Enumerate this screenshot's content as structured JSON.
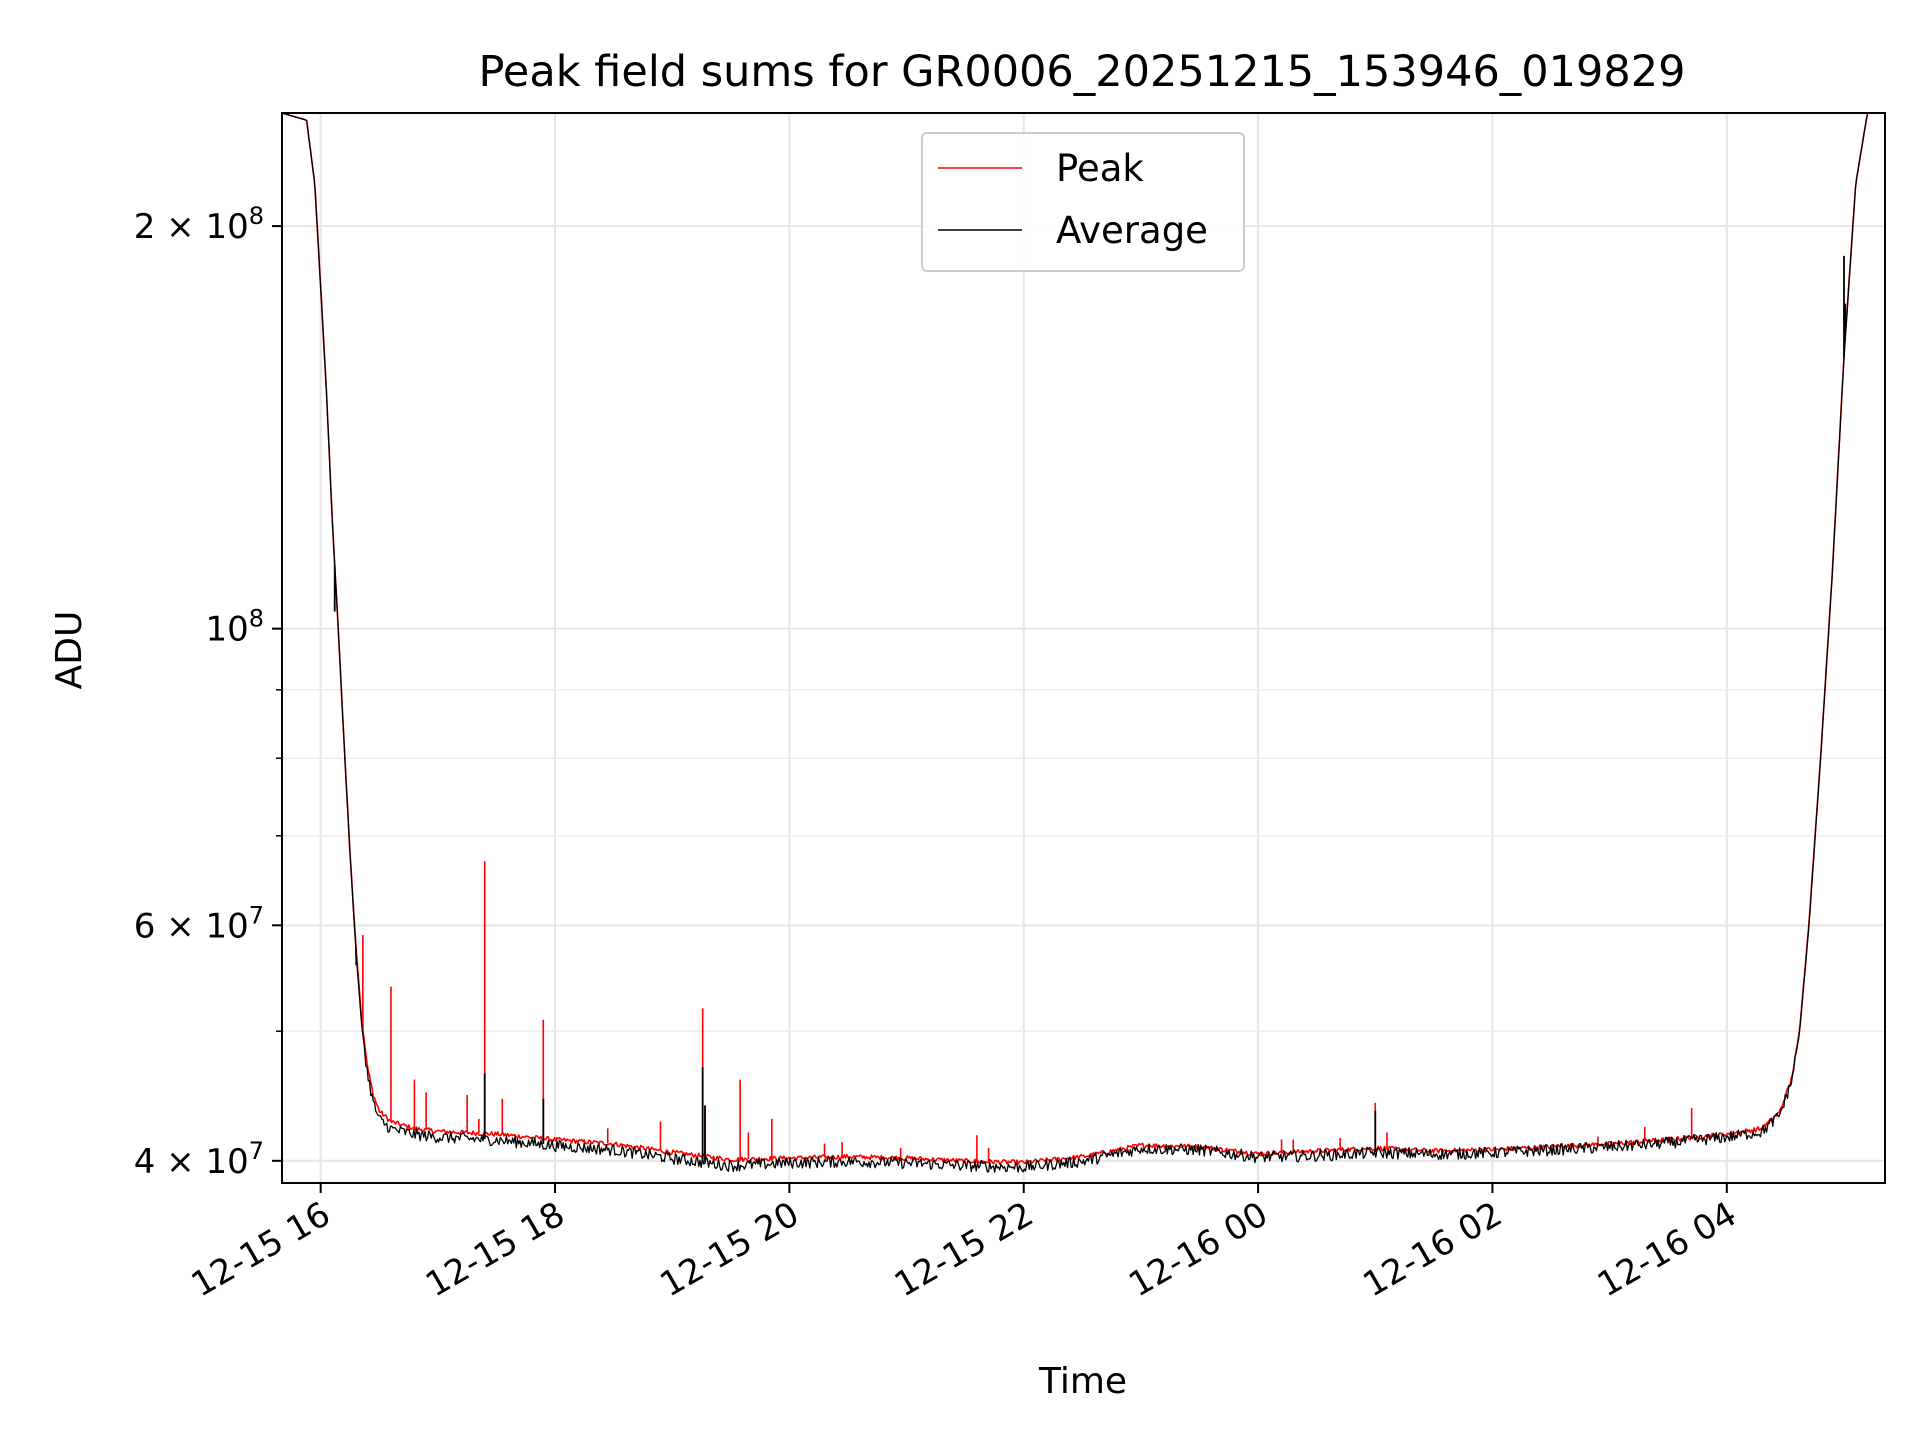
{
  "chart_data": {
    "type": "line",
    "title": "Peak field sums for GR0006_20251215_153946_019829",
    "xlabel": "Time",
    "ylabel": "ADU",
    "yscale": "log",
    "ylim": [
      38500000,
      243000000
    ],
    "xlim": [
      15.67,
      29.35
    ],
    "x_unit": "hours since 2025-12-15 00:00",
    "grid": true,
    "legend_position": "upper-center",
    "x_ticks": [
      {
        "value": 16,
        "label": "12-15 16"
      },
      {
        "value": 18,
        "label": "12-15 18"
      },
      {
        "value": 20,
        "label": "12-15 20"
      },
      {
        "value": 22,
        "label": "12-15 22"
      },
      {
        "value": 24,
        "label": "12-16 00"
      },
      {
        "value": 26,
        "label": "12-16 02"
      },
      {
        "value": 28,
        "label": "12-16 04"
      }
    ],
    "y_major_ticks": [
      {
        "value": 40000000,
        "mantissa": "4",
        "exponent": "7"
      },
      {
        "value": 60000000,
        "mantissa": "6",
        "exponent": "7"
      },
      {
        "value": 100000000,
        "mantissa": "",
        "exponent": "8"
      },
      {
        "value": 200000000,
        "mantissa": "2",
        "exponent": "8"
      }
    ],
    "y_minor_ticks": [
      50000000,
      70000000,
      80000000,
      90000000
    ],
    "series": [
      {
        "name": "Peak",
        "color": "#ff0000",
        "baseline": [
          [
            15.67,
            243000000
          ],
          [
            15.88,
            240000000
          ],
          [
            15.95,
            215000000
          ],
          [
            16.0,
            180000000
          ],
          [
            16.05,
            150000000
          ],
          [
            16.1,
            120000000
          ],
          [
            16.15,
            100000000
          ],
          [
            16.2,
            82000000
          ],
          [
            16.25,
            68000000
          ],
          [
            16.3,
            58000000
          ],
          [
            16.35,
            51000000
          ],
          [
            16.4,
            47000000
          ],
          [
            16.45,
            44800000
          ],
          [
            16.5,
            43600000
          ],
          [
            16.6,
            42800000
          ],
          [
            16.8,
            42300000
          ],
          [
            17.0,
            42100000
          ],
          [
            17.5,
            41900000
          ],
          [
            18.0,
            41500000
          ],
          [
            18.5,
            41200000
          ],
          [
            19.0,
            40600000
          ],
          [
            19.5,
            40100000
          ],
          [
            20.0,
            40200000
          ],
          [
            20.5,
            40300000
          ],
          [
            21.0,
            40200000
          ],
          [
            21.5,
            40000000
          ],
          [
            22.0,
            39900000
          ],
          [
            22.5,
            40300000
          ],
          [
            23.0,
            41100000
          ],
          [
            23.5,
            41000000
          ],
          [
            24.0,
            40500000
          ],
          [
            24.5,
            40700000
          ],
          [
            25.0,
            40900000
          ],
          [
            25.5,
            40700000
          ],
          [
            26.0,
            40800000
          ],
          [
            26.5,
            41000000
          ],
          [
            27.0,
            41200000
          ],
          [
            27.5,
            41500000
          ],
          [
            28.0,
            41900000
          ],
          [
            28.3,
            42300000
          ],
          [
            28.45,
            43500000
          ],
          [
            28.55,
            46000000
          ],
          [
            28.62,
            50000000
          ],
          [
            28.7,
            60000000
          ],
          [
            28.8,
            80000000
          ],
          [
            28.9,
            110000000
          ],
          [
            29.0,
            160000000
          ],
          [
            29.1,
            215000000
          ],
          [
            29.2,
            243000000
          ],
          [
            29.35,
            243000000
          ]
        ],
        "spikes": [
          [
            16.3,
            56000000
          ],
          [
            16.36,
            59000000
          ],
          [
            16.6,
            54000000
          ],
          [
            16.8,
            46000000
          ],
          [
            16.9,
            45000000
          ],
          [
            17.25,
            44800000
          ],
          [
            17.35,
            43000000
          ],
          [
            17.4,
            67000000
          ],
          [
            17.55,
            44500000
          ],
          [
            17.9,
            51000000
          ],
          [
            18.45,
            42300000
          ],
          [
            18.9,
            42800000
          ],
          [
            19.26,
            52000000
          ],
          [
            19.28,
            44000000
          ],
          [
            19.58,
            46000000
          ],
          [
            19.65,
            42000000
          ],
          [
            19.85,
            43000000
          ],
          [
            20.3,
            41200000
          ],
          [
            20.45,
            41300000
          ],
          [
            20.95,
            40900000
          ],
          [
            21.6,
            41800000
          ],
          [
            21.7,
            40900000
          ],
          [
            24.2,
            41500000
          ],
          [
            24.3,
            41500000
          ],
          [
            24.7,
            41600000
          ],
          [
            25.0,
            44200000
          ],
          [
            25.1,
            42000000
          ],
          [
            26.9,
            41700000
          ],
          [
            27.3,
            42400000
          ],
          [
            27.7,
            43800000
          ]
        ]
      },
      {
        "name": "Average",
        "color": "#000000",
        "baseline": [
          [
            15.67,
            243000000
          ],
          [
            15.88,
            240000000
          ],
          [
            15.95,
            215000000
          ],
          [
            16.0,
            180000000
          ],
          [
            16.05,
            150000000
          ],
          [
            16.1,
            120000000
          ],
          [
            16.15,
            100000000
          ],
          [
            16.2,
            82000000
          ],
          [
            16.25,
            68000000
          ],
          [
            16.3,
            57500000
          ],
          [
            16.35,
            50500000
          ],
          [
            16.4,
            46500000
          ],
          [
            16.45,
            44200000
          ],
          [
            16.5,
            43000000
          ],
          [
            16.6,
            42300000
          ],
          [
            16.8,
            41900000
          ],
          [
            17.0,
            41700000
          ],
          [
            17.5,
            41500000
          ],
          [
            18.0,
            41100000
          ],
          [
            18.5,
            40800000
          ],
          [
            19.0,
            40200000
          ],
          [
            19.5,
            39700000
          ],
          [
            20.0,
            39900000
          ],
          [
            20.5,
            40000000
          ],
          [
            21.0,
            39900000
          ],
          [
            21.5,
            39700000
          ],
          [
            22.0,
            39600000
          ],
          [
            22.5,
            40000000
          ],
          [
            23.0,
            40900000
          ],
          [
            23.5,
            40800000
          ],
          [
            24.0,
            40300000
          ],
          [
            24.5,
            40400000
          ],
          [
            25.0,
            40600000
          ],
          [
            25.5,
            40500000
          ],
          [
            26.0,
            40600000
          ],
          [
            26.5,
            40800000
          ],
          [
            27.0,
            41000000
          ],
          [
            27.5,
            41300000
          ],
          [
            28.0,
            41700000
          ],
          [
            28.3,
            42100000
          ],
          [
            28.45,
            43300000
          ],
          [
            28.55,
            45800000
          ],
          [
            28.62,
            49800000
          ],
          [
            28.7,
            59800000
          ],
          [
            28.8,
            79800000
          ],
          [
            28.9,
            109800000
          ],
          [
            29.0,
            159500000
          ],
          [
            29.1,
            215000000
          ],
          [
            29.2,
            243000000
          ],
          [
            29.35,
            243000000
          ]
        ],
        "spikes": [
          [
            16.12,
            103000000
          ],
          [
            17.4,
            46500000
          ],
          [
            17.9,
            44500000
          ],
          [
            19.26,
            47000000
          ],
          [
            19.28,
            44000000
          ],
          [
            25.0,
            43600000
          ],
          [
            29.0,
            190000000
          ],
          [
            29.01,
            175000000
          ]
        ]
      }
    ]
  }
}
